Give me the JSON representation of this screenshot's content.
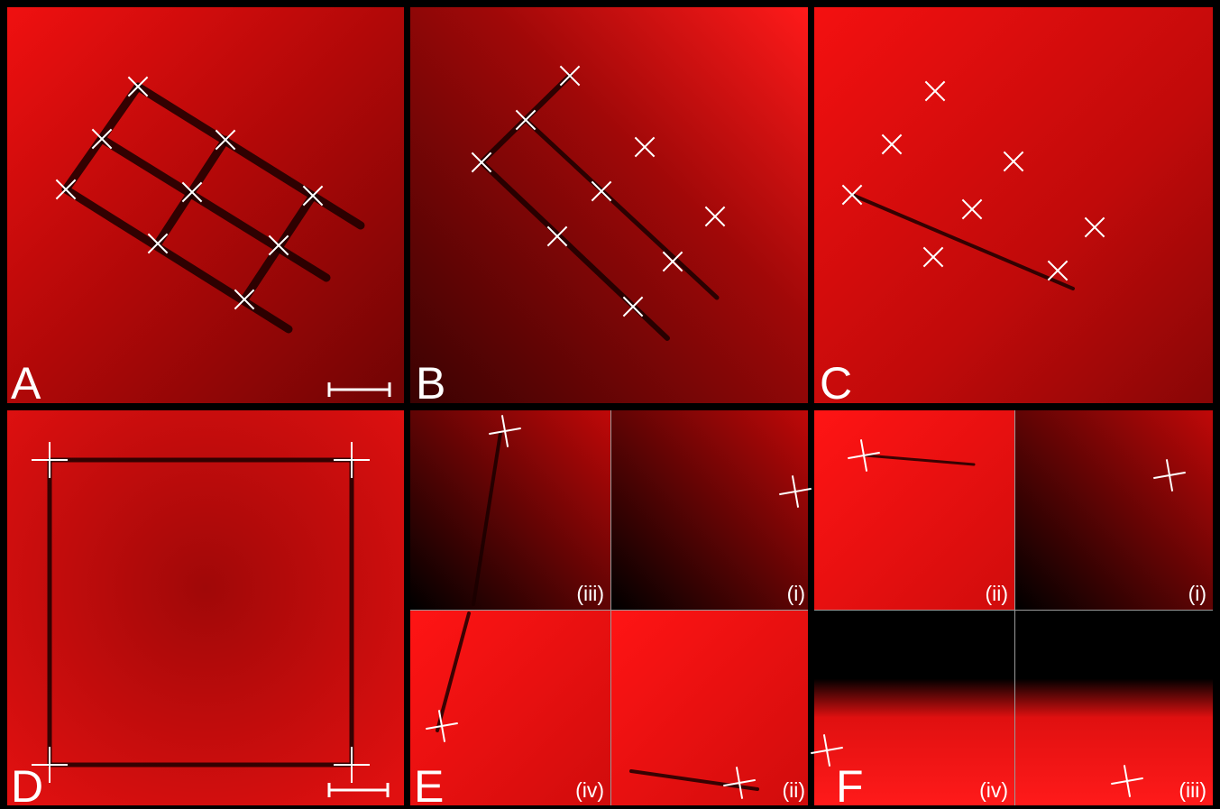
{
  "panels": [
    {
      "label": "A"
    },
    {
      "label": "B"
    },
    {
      "label": "C"
    },
    {
      "label": "D"
    },
    {
      "label": "E",
      "subpanels": [
        "(iii)",
        "(i)",
        "(iv)",
        "(ii)"
      ]
    },
    {
      "label": "F",
      "subpanels": [
        "(ii)",
        "(i)",
        "(iv)",
        "(iii)"
      ]
    }
  ]
}
